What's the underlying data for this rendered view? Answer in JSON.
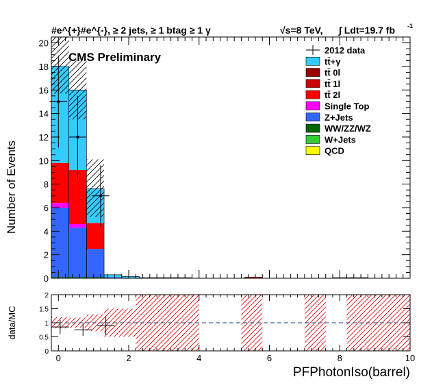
{
  "header": {
    "left_label": "#e^{+}#e^{-}, ≥ 2 jets, ≥ 1 btag ≥ 1 γ",
    "energy": "√s=8 TeV,",
    "lumi_label": "∫ Ldt=19.7 fb",
    "lumi_exp": "-1"
  },
  "annotation": "CMS Preliminary",
  "chart_data": [
    {
      "type": "bar",
      "stacked": true,
      "xlabel": "PFPhotonIso(barrel)",
      "ylabel": "Number of Events",
      "xlim": [
        -0.2,
        10
      ],
      "ylim": [
        0,
        20.5
      ],
      "bin_width": 0.5,
      "bin_edges": [
        -0.2,
        0.3,
        0.8,
        1.3,
        1.8,
        2.3,
        2.8,
        3.3,
        3.8,
        4.3,
        4.8,
        5.3,
        5.8,
        6.3,
        6.8,
        7.3,
        7.8,
        8.3,
        8.8,
        9.3,
        9.8
      ],
      "x_ticks": [
        0,
        2,
        4,
        6,
        8,
        10
      ],
      "y_ticks": [
        0,
        2,
        4,
        6,
        8,
        10,
        12,
        14,
        16,
        18,
        20
      ],
      "legend_position": "top-right",
      "legend": [
        {
          "label": "2012 data",
          "color": "#000000",
          "style": "marker"
        },
        {
          "label": "tt̄+γ",
          "color": "#33ccff"
        },
        {
          "label": "tt̄ 0l",
          "color": "#990000"
        },
        {
          "label": "tt̄ 1l",
          "color": "#cc0000"
        },
        {
          "label": "tt̄ 2l",
          "color": "#ff0000"
        },
        {
          "label": "Single Top",
          "color": "#ff00ff"
        },
        {
          "label": "Z+Jets",
          "color": "#3366ff"
        },
        {
          "label": "WW/ZZ/WZ",
          "color": "#006600"
        },
        {
          "label": "W+Jets",
          "color": "#33cc33"
        },
        {
          "label": "QCD",
          "color": "#ffff00"
        }
      ],
      "series": [
        {
          "name": "WW/ZZ/WZ",
          "color": "#006600",
          "values": [
            0.1,
            0.1,
            0.1,
            0,
            0,
            0,
            0,
            0,
            0,
            0,
            0,
            0,
            0,
            0,
            0,
            0,
            0,
            0,
            0,
            0
          ]
        },
        {
          "name": "Z+Jets",
          "color": "#3366ff",
          "values": [
            5.9,
            4.2,
            2.4,
            0.1,
            0.05,
            0,
            0,
            0,
            0,
            0,
            0,
            0,
            0,
            0,
            0,
            0,
            0,
            0,
            0,
            0
          ]
        },
        {
          "name": "Single Top",
          "color": "#ff00ff",
          "values": [
            0.4,
            0.3,
            0,
            0,
            0,
            0,
            0,
            0,
            0,
            0,
            0,
            0,
            0,
            0,
            0,
            0,
            0,
            0,
            0,
            0
          ]
        },
        {
          "name": "tt̄ 2l",
          "color": "#ff0000",
          "values": [
            3.4,
            4.6,
            2.2,
            0,
            0,
            0,
            0,
            0,
            0,
            0,
            0,
            0.1,
            0,
            0,
            0,
            0,
            0,
            0,
            0,
            0
          ]
        },
        {
          "name": "tt̄+γ",
          "color": "#33ccff",
          "values": [
            8.2,
            6.8,
            2.9,
            0.2,
            0.1,
            0.05,
            0.05,
            0.05,
            0,
            0,
            0,
            0,
            0,
            0,
            0,
            0,
            0.05,
            0.05,
            0,
            0
          ]
        }
      ],
      "uncertainty_band": [
        {
          "bin": 0,
          "low": 15.7,
          "high": 20.5
        },
        {
          "bin": 1,
          "low": 13.5,
          "high": 18.5
        },
        {
          "bin": 2,
          "low": 5.2,
          "high": 10.1
        }
      ],
      "data_points": [
        {
          "x": 0.0,
          "y": 15,
          "yerr": 3.9,
          "xerr": 0.25
        },
        {
          "x": 0.55,
          "y": 12,
          "yerr": 3.5,
          "xerr": 0.25
        },
        {
          "x": 1.2,
          "y": 7,
          "yerr": 2.6,
          "xerr": 0.25
        }
      ]
    },
    {
      "type": "ratio",
      "ylabel": "data/MC",
      "xlim": [
        -0.2,
        10
      ],
      "ylim": [
        0,
        2
      ],
      "y_ticks": [
        0,
        0.5,
        1,
        1.5,
        2
      ],
      "y_tick_labels": [
        "0",
        "0.5",
        "1",
        "1.5",
        "2"
      ],
      "reference_line": 1,
      "error_band": [
        {
          "x0": -0.2,
          "x1": 0.3,
          "low": 0.8,
          "high": 1.2
        },
        {
          "x0": 0.3,
          "x1": 0.8,
          "low": 0.82,
          "high": 1.18
        },
        {
          "x0": 0.8,
          "x1": 1.3,
          "low": 0.7,
          "high": 1.3
        },
        {
          "x0": 1.3,
          "x1": 2.2,
          "low": 0.5,
          "high": 1.5
        },
        {
          "x0": 2.2,
          "x1": 4.0,
          "low": 0,
          "high": 2
        },
        {
          "x0": 5.2,
          "x1": 5.8,
          "low": 0,
          "high": 2
        },
        {
          "x0": 7.0,
          "x1": 7.6,
          "low": 0,
          "high": 2
        },
        {
          "x0": 8.2,
          "x1": 10.0,
          "low": 0,
          "high": 2
        }
      ],
      "data_points": [
        {
          "x": 0.05,
          "y": 0.85,
          "yerr": 0.25,
          "xerr": 0.25
        },
        {
          "x": 0.7,
          "y": 0.75,
          "yerr": 0.22,
          "xerr": 0.25
        },
        {
          "x": 1.35,
          "y": 0.9,
          "yerr": 0.33,
          "xerr": 0.25
        }
      ]
    }
  ]
}
